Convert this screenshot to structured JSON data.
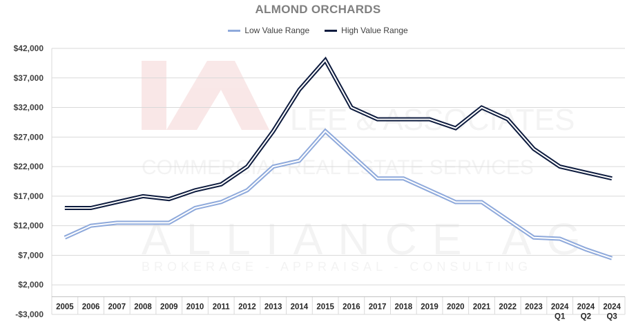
{
  "chart_data": {
    "type": "line",
    "title": "ALMOND ORCHARDS",
    "xlabel": "",
    "ylabel": "",
    "categories": [
      "2005",
      "2006",
      "2007",
      "2008",
      "2009",
      "2010",
      "2011",
      "2012",
      "2013",
      "2014",
      "2015",
      "2016",
      "2017",
      "2018",
      "2019",
      "2020",
      "2021",
      "2022",
      "2023",
      "2024 Q1",
      "2024 Q2",
      "2024 Q3"
    ],
    "category_lines": [
      [
        "2005"
      ],
      [
        "2006"
      ],
      [
        "2007"
      ],
      [
        "2008"
      ],
      [
        "2009"
      ],
      [
        "2010"
      ],
      [
        "2011"
      ],
      [
        "2012"
      ],
      [
        "2013"
      ],
      [
        "2014"
      ],
      [
        "2015"
      ],
      [
        "2016"
      ],
      [
        "2017"
      ],
      [
        "2018"
      ],
      [
        "2019"
      ],
      [
        "2020"
      ],
      [
        "2021"
      ],
      [
        "2022"
      ],
      [
        "2023"
      ],
      [
        "2024",
        "Q1"
      ],
      [
        "2024",
        "Q2"
      ],
      [
        "2024",
        "Q3"
      ]
    ],
    "ylim": [
      -3000,
      42000
    ],
    "yticks": [
      -3000,
      2000,
      7000,
      12000,
      17000,
      22000,
      27000,
      32000,
      37000,
      42000
    ],
    "ytick_labels": [
      "-$3,000",
      "$2,000",
      "$7,000",
      "$12,000",
      "$17,000",
      "$22,000",
      "$27,000",
      "$32,000",
      "$37,000",
      "$42,000"
    ],
    "grid": true,
    "legend": "top-center",
    "series": [
      {
        "name": "Low Value Range",
        "color": "#8ea9db",
        "values": [
          10000,
          12000,
          12500,
          12500,
          12500,
          15000,
          16000,
          18000,
          22000,
          23000,
          28000,
          24000,
          20000,
          20000,
          18000,
          16000,
          16000,
          13000,
          10000,
          9800,
          8000,
          6500
        ]
      },
      {
        "name": "High Value Range",
        "color": "#0d1b3e",
        "values": [
          15000,
          15000,
          16000,
          17000,
          16500,
          18000,
          19000,
          22000,
          28000,
          35000,
          40000,
          32000,
          30000,
          30000,
          30000,
          28500,
          32000,
          30000,
          25000,
          22000,
          21000,
          20000
        ]
      }
    ]
  },
  "watermark": {
    "logo_text": "LEE & ASSOCIATES",
    "tagline": "COMMERCIAL REAL ESTATE SERVICES",
    "brand": "ALLIANCE AG",
    "brand_tagline": "BROKERAGE - APPRAISAL - CONSULTING"
  }
}
